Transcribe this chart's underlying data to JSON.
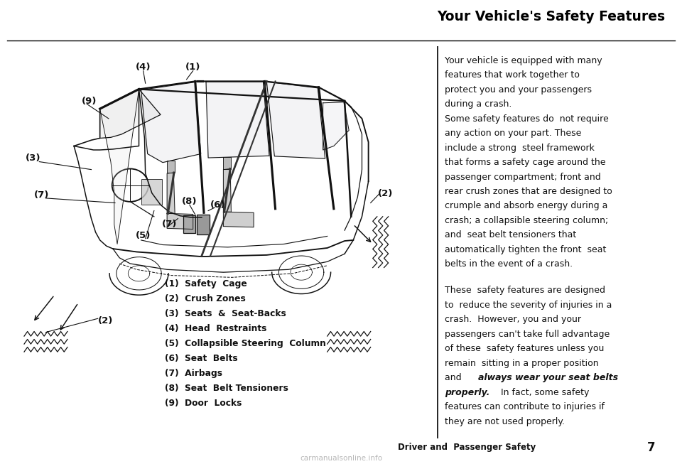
{
  "title": "Your Vehicle's Safety Features",
  "page_bg": "#ffffff",
  "title_color": "#000000",
  "title_fontsize": 13.5,
  "right_text_paragraph1_lines": [
    "Your vehicle is equipped with many",
    "features that work together to",
    "protect you and your passengers",
    "during a crash.",
    "Some safety features do  not require",
    "any action on your part. These",
    "include a strong  steel framework",
    "that forms a safety cage around the",
    "passenger compartment; front and",
    "rear crush zones that are designed to",
    "crumple and absorb energy during a",
    "crash; a collapsible steering column;",
    "and  seat belt tensioners that",
    "automatically tighten the front  seat",
    "belts in the event of a crash."
  ],
  "right_text_paragraph2_lines_before": [
    "These  safety features are designed",
    "to  reduce the severity of injuries in a",
    "crash.  However, you and your",
    "passengers can't take full advantage",
    "of these  safety features unless you",
    "remain  sitting in a proper position",
    "and  "
  ],
  "right_bold_italic": "always wear your seat belts\nproperly.",
  "right_text_paragraph2_lines_after": [
    "  In fact, some safety",
    "features can contribute to injuries if",
    "they are not used properly."
  ],
  "footer_center": "Driver and  Passenger Safety",
  "footer_page": "7",
  "watermark": "carmanualsonline.info",
  "legend_items": [
    "(1)  Safety  Cage",
    "(2)  Crush Zones",
    "(3)  Seats  &  Seat-Backs",
    "(4)  Head  Restraints",
    "(5)  Collapsible Steering  Column",
    "(6)  Seat  Belts",
    "(7)  Airbags",
    "(8)  Seat  Belt Tensioners",
    "(9)  Door  Locks"
  ],
  "text_fontsize": 9.0,
  "legend_fontsize": 8.8,
  "footer_fontsize": 8.5,
  "label_fontsize": 9.5
}
